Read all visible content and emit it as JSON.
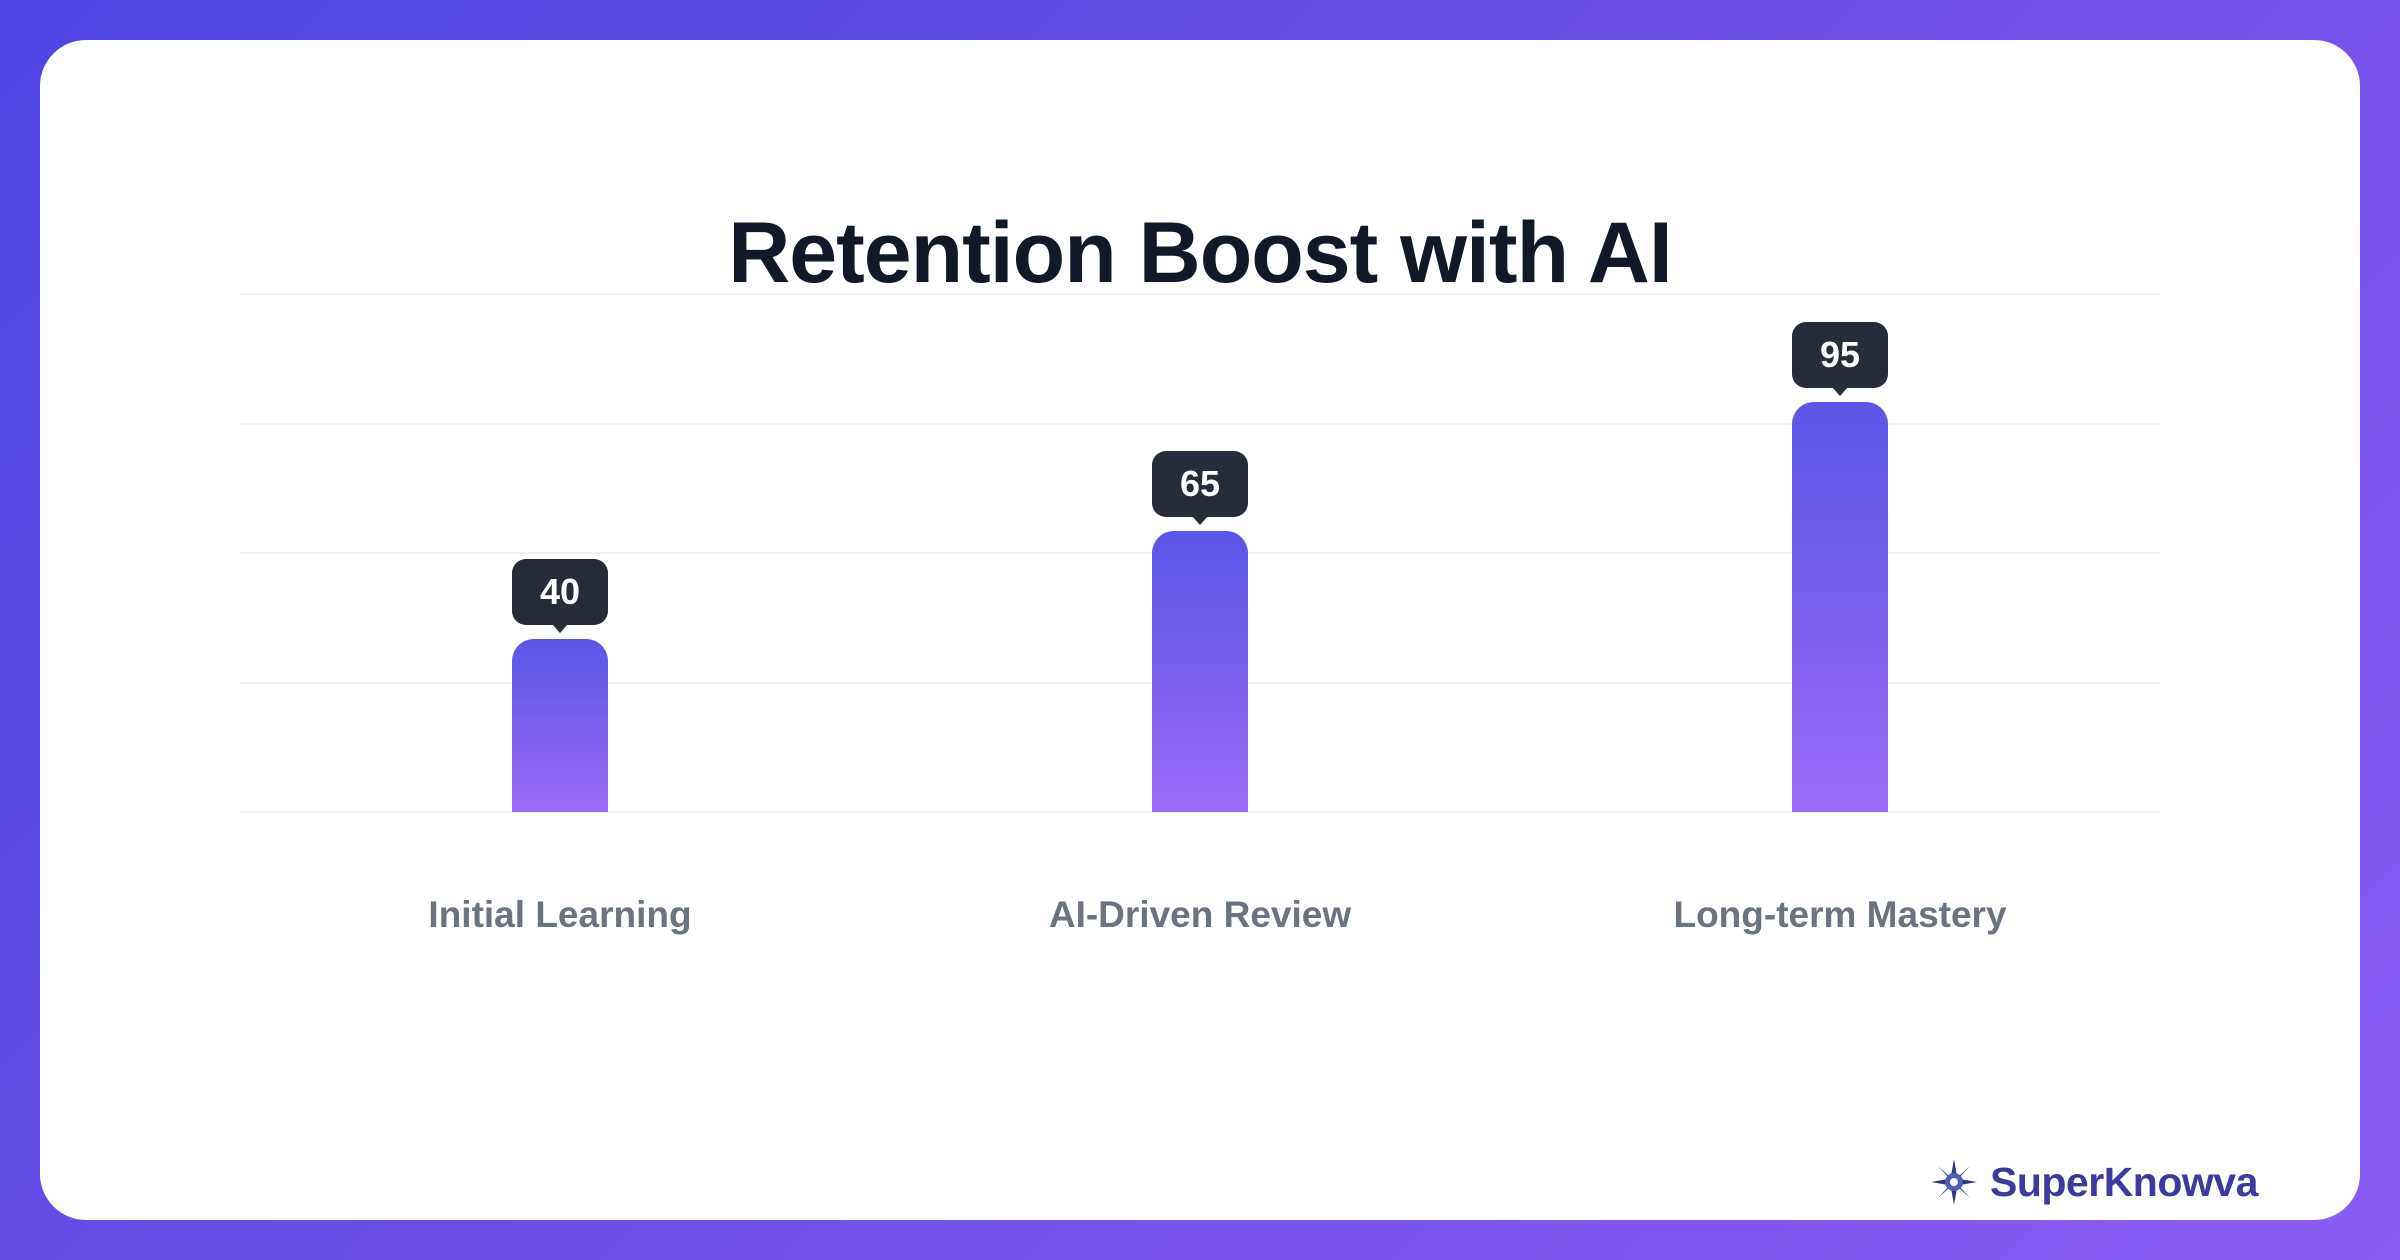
{
  "title": "Retention Boost with AI",
  "brand": {
    "name": "SuperKnowva",
    "logo_icon": "compass-star-icon"
  },
  "colors": {
    "background_gradient": [
      "#4f46e5",
      "#8b5cf6"
    ],
    "bar_gradient": [
      "#5b55e6",
      "#9a6bf6"
    ],
    "bubble": "#252d3b",
    "title": "#111827",
    "label": "#6b7280",
    "brand": "#3b3a9e"
  },
  "chart_data": {
    "type": "bar",
    "title": "Retention Boost with AI",
    "categories": [
      "Initial Learning",
      "AI-Driven Review",
      "Long-term Mastery"
    ],
    "values": [
      40,
      65,
      95
    ],
    "data_labels": [
      "40",
      "65",
      "95"
    ],
    "xlabel": "",
    "ylabel": "",
    "ylim": [
      0,
      120
    ],
    "grid": true,
    "legend": "none"
  }
}
